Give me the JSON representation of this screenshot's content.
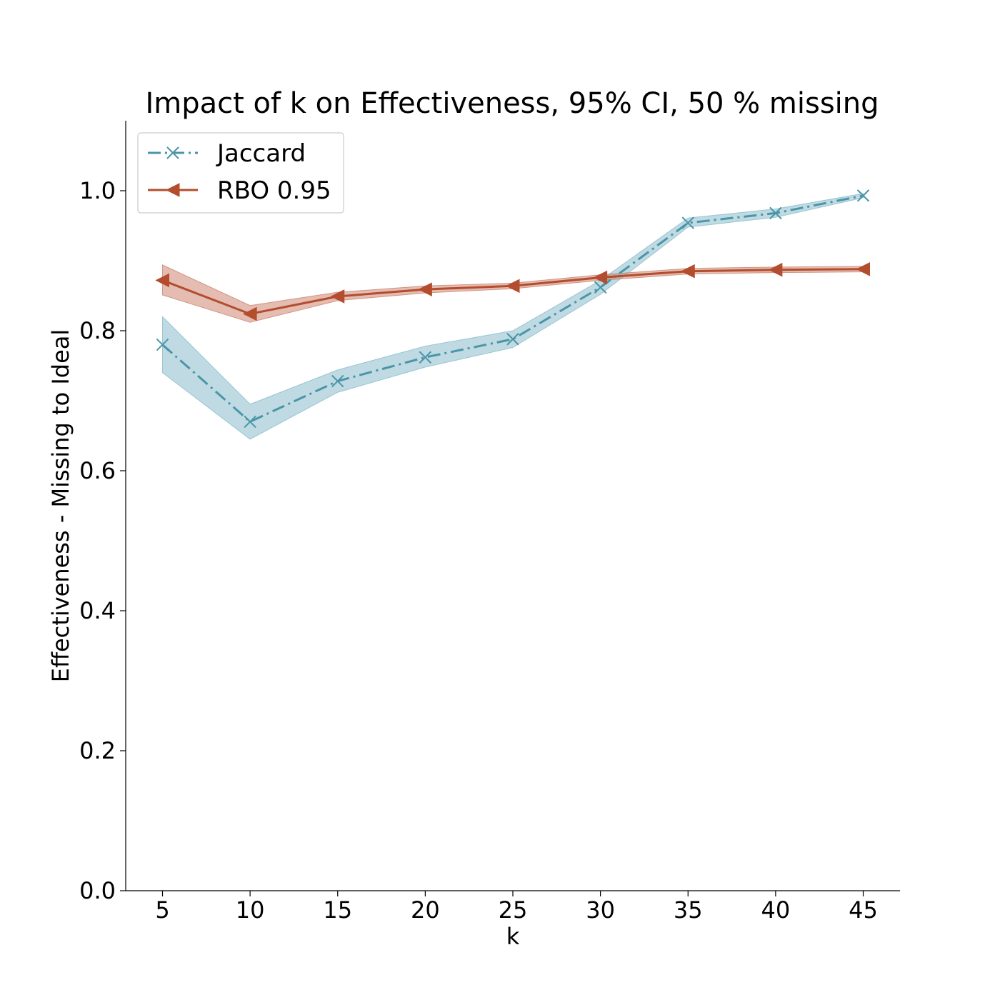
{
  "chart_data": {
    "type": "line",
    "title": "Impact of k on Effectiveness, 95% CI, 50 % missing",
    "xlabel": "k",
    "ylabel": "Effectiveness - Missing to Ideal",
    "x": [
      5,
      10,
      15,
      20,
      25,
      30,
      35,
      40,
      45
    ],
    "xticks": [
      "5",
      "10",
      "15",
      "20",
      "25",
      "30",
      "35",
      "40",
      "45"
    ],
    "yticks": [
      "0.0",
      "0.2",
      "0.4",
      "0.6",
      "0.8",
      "1.0"
    ],
    "xlim": [
      2.9,
      47.1
    ],
    "ylim": [
      0.0,
      1.1
    ],
    "grid": false,
    "legend_position": "upper-left",
    "series": [
      {
        "name": "Jaccard",
        "color": "#4a96a8",
        "band_color": "#7fb6c6",
        "line_style": "dash-dot",
        "marker": "x",
        "values": [
          0.78,
          0.67,
          0.728,
          0.762,
          0.788,
          0.862,
          0.954,
          0.968,
          0.993
        ],
        "ci_lower": [
          0.74,
          0.645,
          0.712,
          0.748,
          0.776,
          0.852,
          0.948,
          0.962,
          0.99
        ],
        "ci_upper": [
          0.82,
          0.695,
          0.744,
          0.778,
          0.8,
          0.872,
          0.961,
          0.974,
          0.996
        ]
      },
      {
        "name": "RBO 0.95",
        "color": "#b34d2e",
        "band_color": "#c97a64",
        "line_style": "solid",
        "marker": "triangle-left",
        "values": [
          0.872,
          0.824,
          0.849,
          0.859,
          0.864,
          0.876,
          0.885,
          0.887,
          0.888
        ],
        "ci_lower": [
          0.851,
          0.812,
          0.843,
          0.854,
          0.86,
          0.872,
          0.881,
          0.883,
          0.884
        ],
        "ci_upper": [
          0.894,
          0.836,
          0.855,
          0.864,
          0.868,
          0.88,
          0.889,
          0.891,
          0.892
        ]
      }
    ]
  }
}
